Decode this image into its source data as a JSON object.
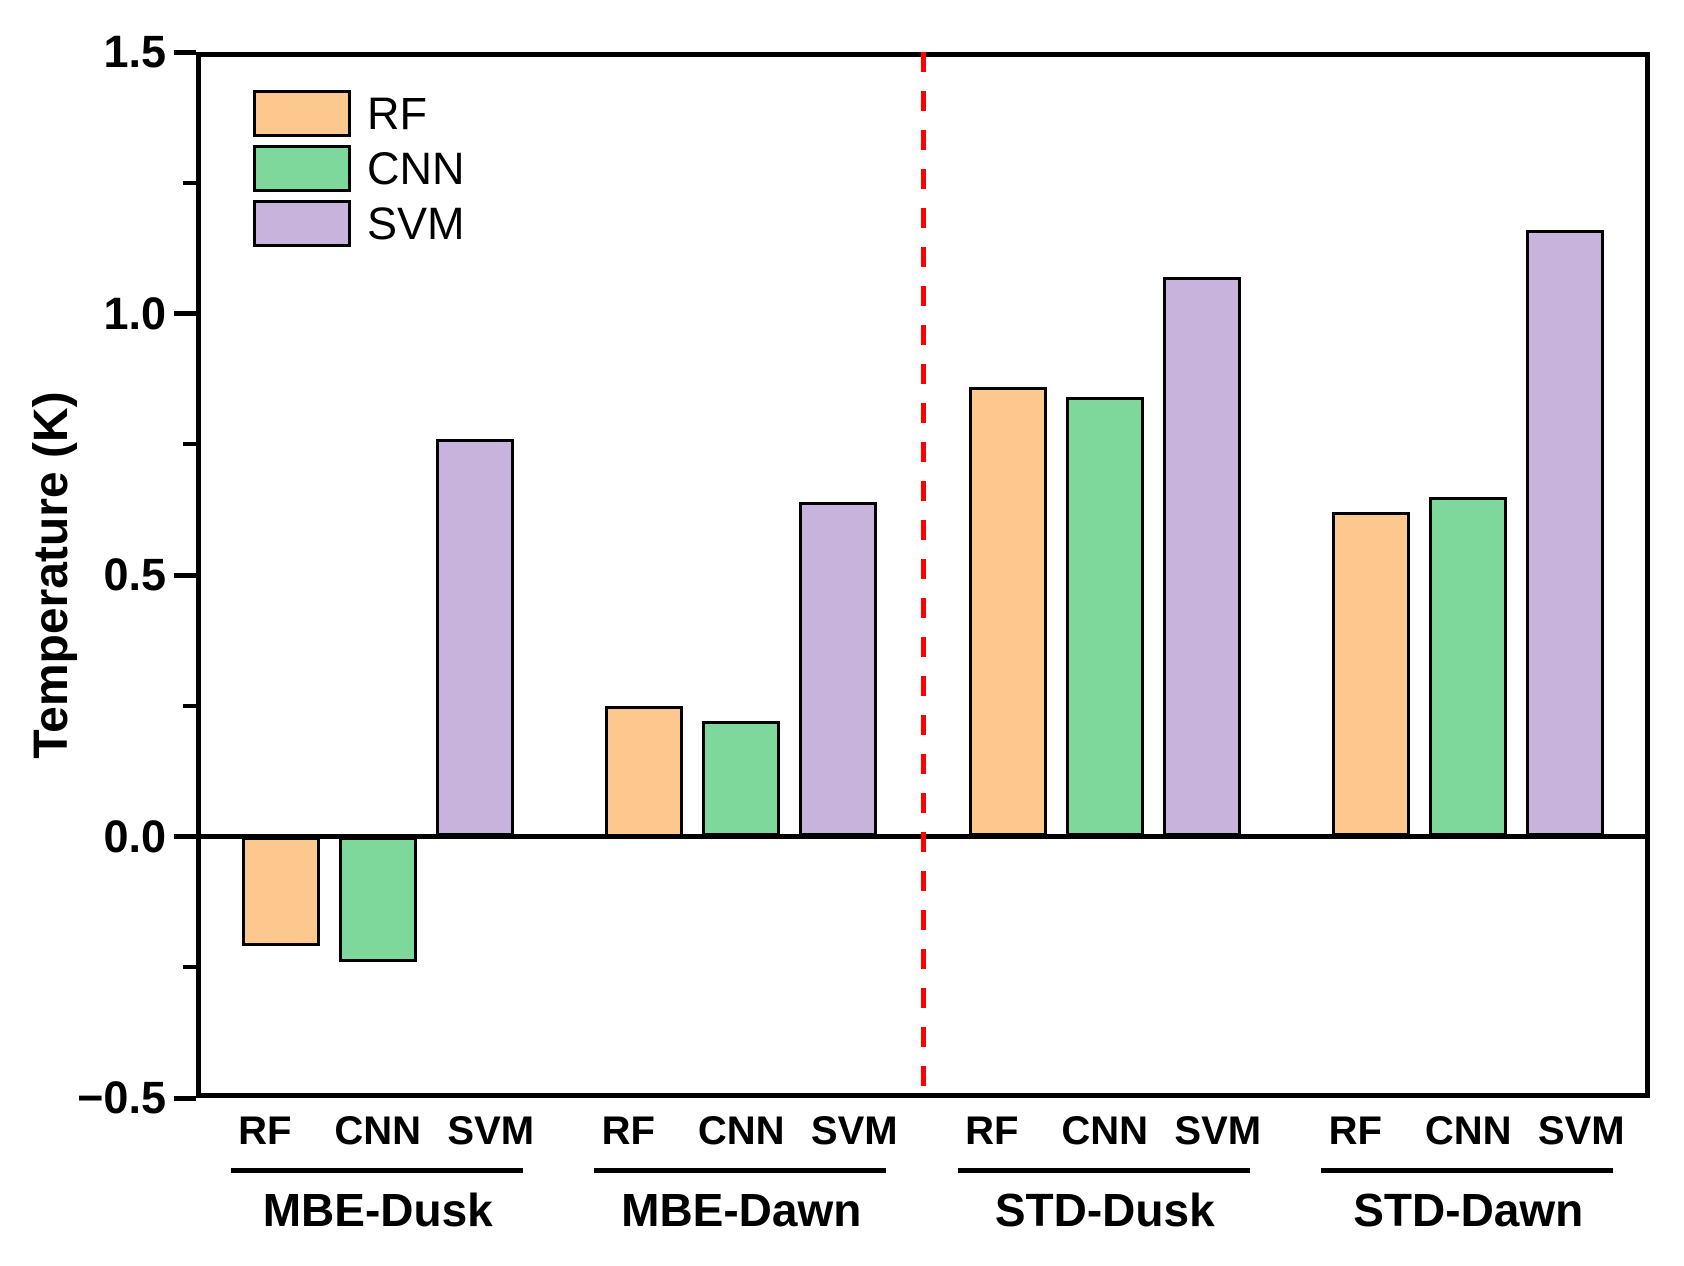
{
  "chart_data": {
    "type": "bar",
    "title": "",
    "xlabel": "",
    "ylabel": "Temperature (K)",
    "ylim": [
      -0.5,
      1.5
    ],
    "baseline": 0.0,
    "grid": false,
    "y_major_ticks": [
      {
        "v": 1.5,
        "label": "1.5"
      },
      {
        "v": 1.0,
        "label": "1.0"
      },
      {
        "v": 0.5,
        "label": "0.5"
      },
      {
        "v": 0.0,
        "label": "0.0"
      },
      {
        "v": -0.5,
        "label": "−0.5"
      }
    ],
    "y_minor_ticks": [
      1.25,
      0.75,
      0.25,
      -0.25
    ],
    "categories": [
      "MBE-Dusk",
      "MBE-Dawn",
      "STD-Dusk",
      "STD-Dawn"
    ],
    "bar_sublabels": [
      "RF",
      "CNN",
      "SVM"
    ],
    "series": [
      {
        "name": "RF",
        "color": "#FDC88D",
        "values": [
          -0.21,
          0.25,
          0.86,
          0.62
        ]
      },
      {
        "name": "CNN",
        "color": "#7ED79B",
        "values": [
          -0.24,
          0.22,
          0.84,
          0.65
        ]
      },
      {
        "name": "SVM",
        "color": "#C7B3DC",
        "values": [
          0.76,
          0.64,
          1.07,
          1.16
        ]
      }
    ],
    "legend": {
      "position": "top-left",
      "entries": [
        "RF",
        "CNN",
        "SVM"
      ]
    },
    "separator_line": {
      "orientation": "vertical",
      "style": "dashed",
      "color": "#FF0000",
      "after_category": "MBE-Dawn"
    },
    "frame_color": "#000000",
    "text_color": "#000000"
  }
}
